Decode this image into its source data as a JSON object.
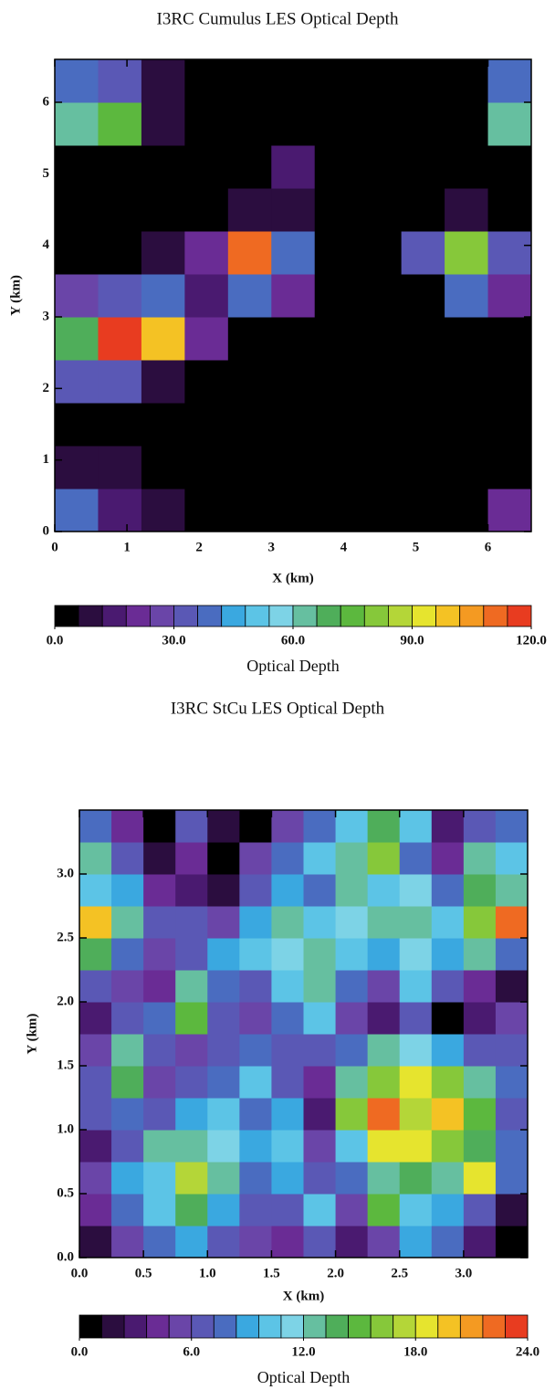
{
  "chart_data": [
    {
      "type": "contour",
      "title": "I3RC Cumulus LES Optical Depth",
      "x_label": "X (km)",
      "y_label": "Y (km)",
      "x": [
        0.3,
        0.9,
        1.5,
        2.1,
        2.7,
        3.3,
        3.9,
        4.5,
        5.1,
        5.7,
        6.3
      ],
      "y": [
        0.3,
        0.9,
        1.5,
        2.1,
        2.7,
        3.3,
        3.9,
        4.5,
        5.1,
        5.7,
        6.3
      ],
      "z": [
        [
          40,
          15,
          10,
          0,
          0,
          0,
          0,
          0,
          0,
          0,
          20
        ],
        [
          10,
          10,
          0,
          0,
          0,
          0,
          0,
          0,
          0,
          0,
          0
        ],
        [
          0,
          0,
          0,
          0,
          0,
          0,
          0,
          0,
          0,
          0,
          0
        ],
        [
          30,
          35,
          10,
          0,
          0,
          0,
          0,
          0,
          0,
          0,
          0
        ],
        [
          70,
          115,
          100,
          20,
          0,
          0,
          0,
          0,
          0,
          0,
          0
        ],
        [
          25,
          30,
          40,
          15,
          40,
          20,
          0,
          0,
          0,
          40,
          20
        ],
        [
          0,
          0,
          10,
          20,
          110,
          40,
          0,
          0,
          30,
          80,
          30
        ],
        [
          0,
          0,
          0,
          0,
          10,
          10,
          0,
          0,
          0,
          10,
          0
        ],
        [
          0,
          0,
          0,
          0,
          0,
          15,
          0,
          0,
          0,
          0,
          0
        ],
        [
          60,
          75,
          10,
          0,
          0,
          0,
          0,
          0,
          0,
          0,
          60
        ],
        [
          40,
          35,
          10,
          0,
          0,
          0,
          0,
          0,
          0,
          0,
          40
        ]
      ],
      "xlim": [
        0,
        6.6
      ],
      "ylim": [
        0,
        6.6
      ],
      "xticks": [
        0,
        1,
        2,
        3,
        4,
        5,
        6
      ],
      "yticks": [
        0,
        1,
        2,
        3,
        4,
        5,
        6
      ],
      "colorbar": {
        "label": "Optical Depth",
        "lim": [
          0,
          120
        ],
        "ticks": [
          {
            "value": 0,
            "label": "0.0"
          },
          {
            "value": 30,
            "label": "30.0"
          },
          {
            "value": 60,
            "label": "60.0"
          },
          {
            "value": 90,
            "label": "90.0"
          },
          {
            "value": 120,
            "label": "120.0"
          }
        ],
        "colors": [
          "#000000",
          "#2b0d3f",
          "#4a1a70",
          "#6a2c95",
          "#6a45a8",
          "#5a58b5",
          "#4a6cc0",
          "#3aa8e0",
          "#5cc4e6",
          "#7dd3e6",
          "#66bfa0",
          "#4fae5a",
          "#5cb83e",
          "#86c83a",
          "#b4d638",
          "#e6e42e",
          "#f4c224",
          "#f49a22",
          "#ef6a22",
          "#e83c20"
        ]
      }
    },
    {
      "type": "contour",
      "title": "I3RC StCu LES Optical Depth",
      "x_label": "X (km)",
      "y_label": "Y (km)",
      "x": [
        0.125,
        0.375,
        0.625,
        0.875,
        1.125,
        1.375,
        1.625,
        1.875,
        2.125,
        2.375,
        2.625,
        2.875,
        3.125,
        3.375
      ],
      "y": [
        0.125,
        0.375,
        0.625,
        0.875,
        1.125,
        1.375,
        1.625,
        1.875,
        2.125,
        2.375,
        2.625,
        2.875,
        3.125,
        3.375
      ],
      "z": [
        [
          2,
          5,
          8,
          9,
          7,
          5,
          4,
          7,
          3,
          5,
          9,
          8,
          3,
          0
        ],
        [
          4,
          8,
          10,
          14,
          9,
          6,
          7,
          10,
          5,
          15,
          10,
          9,
          6,
          2
        ],
        [
          5,
          9,
          10,
          17,
          12,
          8,
          9,
          6,
          8,
          12,
          14,
          12,
          18,
          8
        ],
        [
          3,
          7,
          12,
          12,
          11,
          9,
          10,
          5,
          10,
          19,
          18,
          16,
          14,
          8
        ],
        [
          6,
          8,
          6,
          9,
          10,
          8,
          9,
          3,
          16,
          22,
          17,
          20,
          15,
          7
        ],
        [
          7,
          14,
          5,
          6,
          8,
          10,
          7,
          4,
          12,
          16,
          18,
          16,
          12,
          8
        ],
        [
          5,
          13,
          6,
          5,
          6,
          8,
          6,
          6,
          8,
          12,
          11,
          9,
          7,
          6
        ],
        [
          3,
          6,
          8,
          15,
          6,
          5,
          8,
          10,
          5,
          3,
          6,
          0,
          3,
          5
        ],
        [
          6,
          5,
          4,
          12,
          8,
          6,
          10,
          13,
          8,
          5,
          10,
          6,
          4,
          2
        ],
        [
          14,
          8,
          5,
          7,
          9,
          10,
          11,
          12,
          10,
          9,
          11,
          9,
          12,
          8
        ],
        [
          20,
          12,
          6,
          7,
          5,
          9,
          13,
          10,
          11,
          12,
          13,
          10,
          16,
          22
        ],
        [
          10,
          9,
          4,
          3,
          2,
          7,
          9,
          8,
          13,
          10,
          11,
          8,
          14,
          12
        ],
        [
          12,
          6,
          2,
          4,
          0,
          5,
          8,
          10,
          12,
          16,
          8,
          4,
          12,
          10
        ],
        [
          8,
          4,
          0,
          6,
          2,
          0,
          5,
          8,
          10,
          14,
          10,
          3,
          6,
          8
        ]
      ],
      "xlim": [
        0,
        3.5
      ],
      "ylim": [
        0,
        3.5
      ],
      "xticks": [
        {
          "value": 0,
          "label": "0.0"
        },
        0.5,
        {
          "value": 1,
          "label": "1.0"
        },
        1.5,
        {
          "value": 2,
          "label": "2.0"
        },
        2.5,
        {
          "value": 3,
          "label": "3.0"
        }
      ],
      "yticks": [
        {
          "value": 0,
          "label": "0.0"
        },
        0.5,
        {
          "value": 1,
          "label": "1.0"
        },
        1.5,
        {
          "value": 2,
          "label": "2.0"
        },
        2.5,
        {
          "value": 3,
          "label": "3.0"
        }
      ],
      "colorbar": {
        "label": "Optical Depth",
        "lim": [
          0,
          24
        ],
        "ticks": [
          {
            "value": 0,
            "label": "0.0"
          },
          {
            "value": 6,
            "label": "6.0"
          },
          {
            "value": 12,
            "label": "12.0"
          },
          {
            "value": 18,
            "label": "18.0"
          },
          {
            "value": 24,
            "label": "24.0"
          }
        ],
        "colors": [
          "#000000",
          "#2b0d3f",
          "#4a1a70",
          "#6a2c95",
          "#6a45a8",
          "#5a58b5",
          "#4a6cc0",
          "#3aa8e0",
          "#5cc4e6",
          "#7dd3e6",
          "#66bfa0",
          "#4fae5a",
          "#5cb83e",
          "#86c83a",
          "#b4d638",
          "#e6e42e",
          "#f4c224",
          "#f49a22",
          "#ef6a22",
          "#e83c20"
        ]
      }
    }
  ]
}
